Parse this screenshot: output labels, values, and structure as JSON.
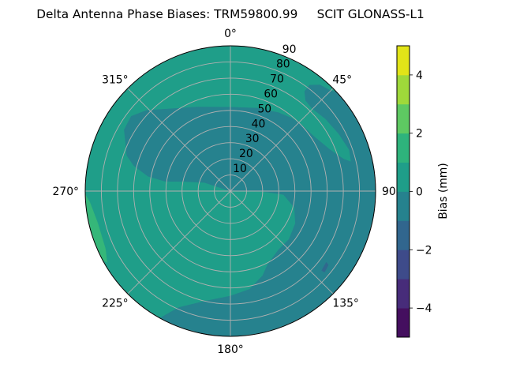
{
  "chart_data": {
    "type": "heatmap",
    "projection": "polar",
    "title": "Delta Antenna Phase Biases: TRM59800.99     SCIT GLONASS-L1",
    "theta_zero": "north",
    "theta_direction": "clockwise",
    "theta_ticks": [
      0,
      45,
      90,
      135,
      180,
      225,
      270,
      315
    ],
    "theta_tick_labels": [
      "0°",
      "45°",
      "90°",
      "135°",
      "180°",
      "225°",
      "270°",
      "315°"
    ],
    "r_ticks": [
      10,
      20,
      30,
      40,
      50,
      60,
      70,
      80,
      90
    ],
    "r_tick_labels": [
      "10",
      "20",
      "30",
      "40",
      "50",
      "60",
      "70",
      "80",
      "90"
    ],
    "r_range": [
      0,
      90
    ],
    "grid": true,
    "colorbar": {
      "label": "Bias (mm)",
      "colormap": "viridis",
      "levels": [
        -5,
        -4,
        -3,
        -2,
        -1,
        0,
        1,
        2,
        3,
        4,
        5
      ],
      "colors": [
        "#440f5f",
        "#472c7a",
        "#3e4b8a",
        "#31668e",
        "#26828e",
        "#1f9e89",
        "#2eb37c",
        "#5ec962",
        "#9fd93a",
        "#e2e418"
      ],
      "ticks": [
        -4,
        -2,
        0,
        2,
        4
      ],
      "tick_labels": [
        "−4",
        "−2",
        "0",
        "2",
        "4"
      ],
      "placement": "right"
    },
    "regions": [
      {
        "level_range": [
          0,
          1
        ],
        "color": "#1f9e89",
        "boundary": "full-disk"
      },
      {
        "level_range": [
          -1,
          0
        ],
        "color": "#26828e",
        "boundary": [
          [
            294,
            71
          ],
          [
            300,
            76
          ],
          [
            307,
            77
          ],
          [
            314,
            72
          ],
          [
            324,
            63
          ],
          [
            338.5,
            56
          ],
          [
            0,
            52
          ],
          [
            18,
            54
          ],
          [
            31.6,
            57
          ],
          [
            40,
            59
          ],
          [
            45.7,
            60
          ],
          [
            57.3,
            62
          ],
          [
            67.7,
            67
          ],
          [
            74.3,
            73
          ],
          [
            76.4,
            77
          ],
          [
            70.9,
            78
          ],
          [
            62.3,
            76
          ],
          [
            52.7,
            74
          ],
          [
            44.6,
            72
          ],
          [
            39.7,
            73
          ],
          [
            36.7,
            77
          ],
          [
            36.8,
            82
          ],
          [
            40.1,
            86
          ],
          [
            45.1,
            88
          ],
          [
            47,
            90
          ],
          [
            70,
            90
          ],
          [
            90,
            90
          ],
          [
            115,
            90
          ],
          [
            135,
            90
          ],
          [
            160,
            90
          ],
          [
            180,
            90
          ],
          [
            195,
            90
          ],
          [
            209,
            90
          ],
          [
            204,
            79
          ],
          [
            193,
            70
          ],
          [
            180,
            65
          ],
          [
            169,
            62
          ],
          [
            159,
            56
          ],
          [
            153,
            51
          ],
          [
            140.6,
            47
          ],
          [
            129.4,
            47
          ],
          [
            116.4,
            45
          ],
          [
            104.5,
            41
          ],
          [
            93.7,
            33
          ],
          [
            90.5,
            20
          ],
          [
            0,
            0
          ],
          [
            288.3,
            17
          ],
          [
            281.8,
            29
          ],
          [
            278.5,
            41
          ],
          [
            280.2,
            52
          ],
          [
            284.8,
            62
          ],
          [
            289,
            68
          ]
        ]
      },
      {
        "level_range": [
          1,
          2
        ],
        "color": "#35b779",
        "boundary": [
          [
            268.7,
            90
          ],
          [
            265.4,
            87.4
          ],
          [
            256.4,
            84.6
          ],
          [
            245,
            85.4
          ],
          [
            240,
            88.4
          ],
          [
            242,
            90
          ],
          [
            255,
            90
          ]
        ]
      },
      {
        "level_range": [
          -2,
          -1
        ],
        "color": "#31688e",
        "boundary": [
          [
            131,
            75
          ],
          [
            126.6,
            74
          ],
          [
            127,
            76
          ],
          [
            130.7,
            77
          ]
        ]
      }
    ]
  }
}
